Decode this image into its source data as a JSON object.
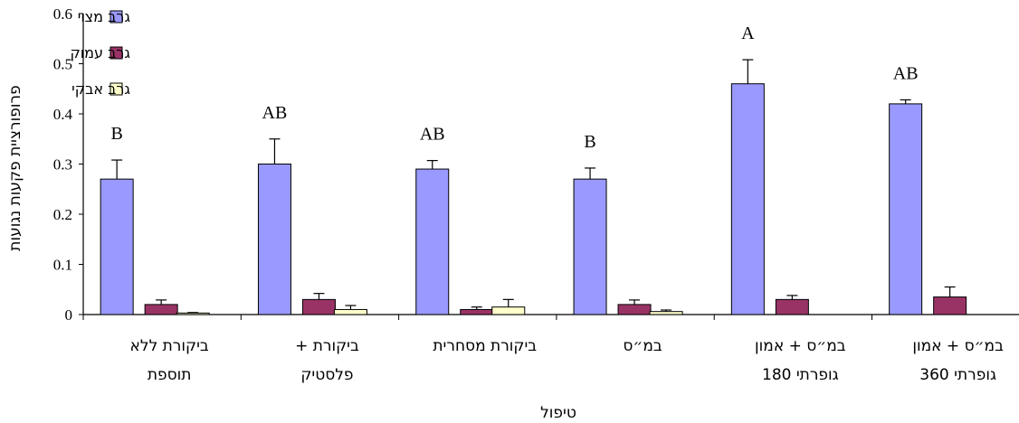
{
  "chart_data": {
    "type": "bar",
    "xlabel": "טיפול",
    "ylabel": "פרופורציית פקעות נגועות",
    "ylim": [
      0,
      0.6
    ],
    "yticks": [
      "0",
      "0.1",
      "0.2",
      "0.3",
      "0.4",
      "0.5",
      "0.6"
    ],
    "legend_position": "top-left",
    "categories": [
      [
        "ביקורת ללא",
        "תוספת"
      ],
      [
        "ביקורת +",
        "פלסטיק"
      ],
      [
        "ביקורת מסחרית"
      ],
      [
        "במ״ס"
      ],
      [
        "במ״ס + אמון",
        "גופרתי 180"
      ],
      [
        "במ״ס + אמון",
        "גופרתי 360"
      ]
    ],
    "series": [
      {
        "name": "גרב מצוי",
        "color": "#9999ff",
        "values": [
          0.27,
          0.3,
          0.29,
          0.27,
          0.46,
          0.42
        ],
        "errors": [
          0.038,
          0.05,
          0.017,
          0.022,
          0.048,
          0.008
        ]
      },
      {
        "name": "גרב עמוק",
        "color": "#993366",
        "values": [
          0.02,
          0.03,
          0.01,
          0.02,
          0.03,
          0.035
        ],
        "errors": [
          0.009,
          0.012,
          0.005,
          0.009,
          0.008,
          0.02
        ]
      },
      {
        "name": "גרב אבקי",
        "color": "#ffffcc",
        "values": [
          0.003,
          0.01,
          0.015,
          0.006,
          0.0,
          0.0
        ],
        "errors": [
          0.001,
          0.008,
          0.015,
          0.003,
          0.0,
          0.0
        ]
      }
    ],
    "annotations": [
      "B",
      "AB",
      "AB",
      "B",
      "A",
      "AB"
    ]
  }
}
